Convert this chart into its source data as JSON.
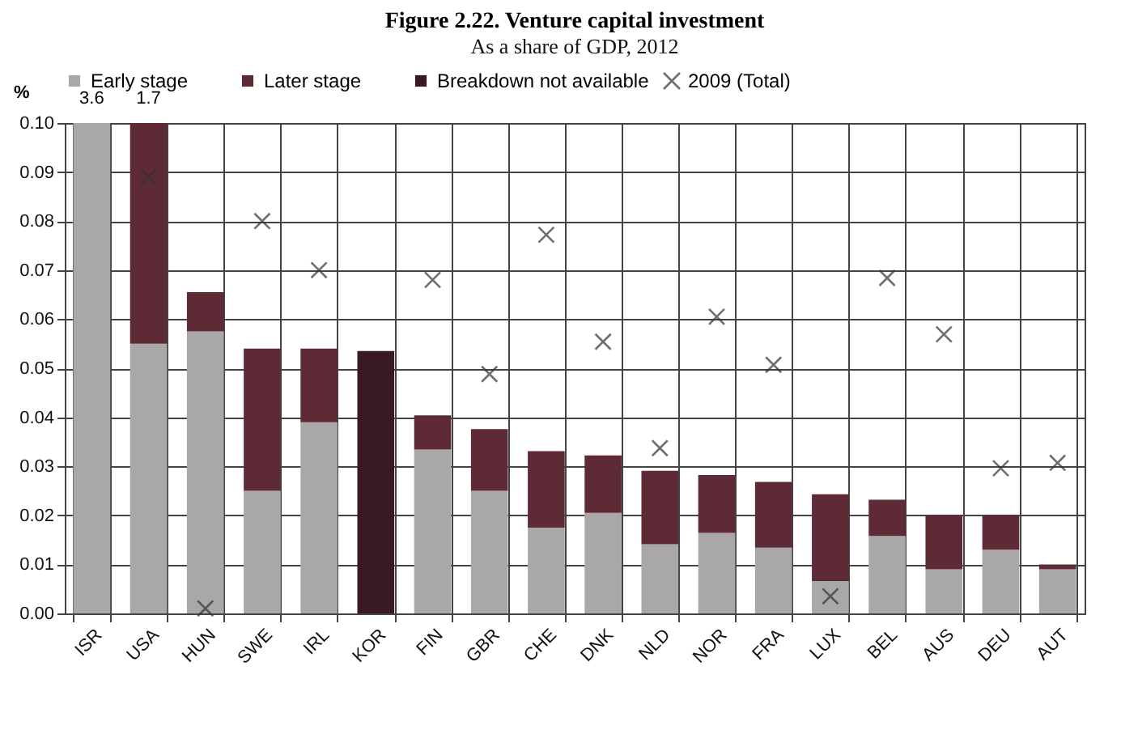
{
  "chart_data": {
    "type": "bar",
    "title": "Figure 2.22. Venture capital investment",
    "subtitle": "As a share of GDP, 2012",
    "ylabel": "%",
    "categories": [
      "ISR",
      "USA",
      "HUN",
      "SWE",
      "IRL",
      "KOR",
      "FIN",
      "GBR",
      "CHE",
      "DNK",
      "NLD",
      "NOR",
      "FRA",
      "LUX",
      "BEL",
      "AUS",
      "DEU",
      "AUT"
    ],
    "stacked": true,
    "series": [
      {
        "name": "Early stage",
        "color": "#aaa7a9",
        "values": [
          0.1,
          0.055,
          0.0575,
          0.025,
          0.039,
          null,
          0.0334,
          0.025,
          0.0175,
          0.0205,
          0.0141,
          0.0164,
          0.0134,
          0.0066,
          0.0158,
          0.009,
          0.013,
          0.009
        ]
      },
      {
        "name": "Later stage",
        "color": "#5e2a35",
        "values": [
          null,
          0.045,
          0.008,
          0.029,
          0.015,
          null,
          0.007,
          0.0126,
          0.0156,
          0.0117,
          0.015,
          0.0118,
          0.0134,
          0.0177,
          0.0074,
          0.011,
          0.007,
          0.001
        ]
      },
      {
        "name": "Breakdown not available",
        "color": "#3a1a22",
        "values": [
          null,
          null,
          null,
          null,
          null,
          0.0535,
          null,
          null,
          null,
          null,
          null,
          null,
          null,
          null,
          null,
          null,
          null,
          null
        ]
      },
      {
        "name": "2009 (Total)",
        "type": "scatter",
        "marker": "cross",
        "color": "#333333",
        "values": [
          null,
          0.089,
          0.001,
          0.08,
          0.07,
          null,
          0.068,
          0.0488,
          0.0772,
          0.0554,
          0.0337,
          0.0605,
          0.0507,
          0.0035,
          0.0684,
          0.0569,
          0.0296,
          0.0307
        ]
      }
    ],
    "ylim": [
      0,
      0.1
    ],
    "yticks": [
      {
        "value": 0,
        "label": "0.00"
      },
      {
        "value": 0.01,
        "label": "0.01"
      },
      {
        "value": 0.02,
        "label": "0.02"
      },
      {
        "value": 0.03,
        "label": "0.03"
      },
      {
        "value": 0.04,
        "label": "0.04"
      },
      {
        "value": 0.05,
        "label": "0.05"
      },
      {
        "value": 0.06,
        "label": "0.06"
      },
      {
        "value": 0.07,
        "label": "0.07"
      },
      {
        "value": 0.08,
        "label": "0.08"
      },
      {
        "value": 0.09,
        "label": "0.09"
      },
      {
        "value": 0.1,
        "label": "0.10"
      }
    ],
    "annotations": [
      {
        "text": "3.6",
        "x": "ISR",
        "y": 0.1
      },
      {
        "text": "1.7",
        "x": "USA",
        "y": 0.1
      }
    ],
    "grid": true,
    "legend": "top"
  }
}
